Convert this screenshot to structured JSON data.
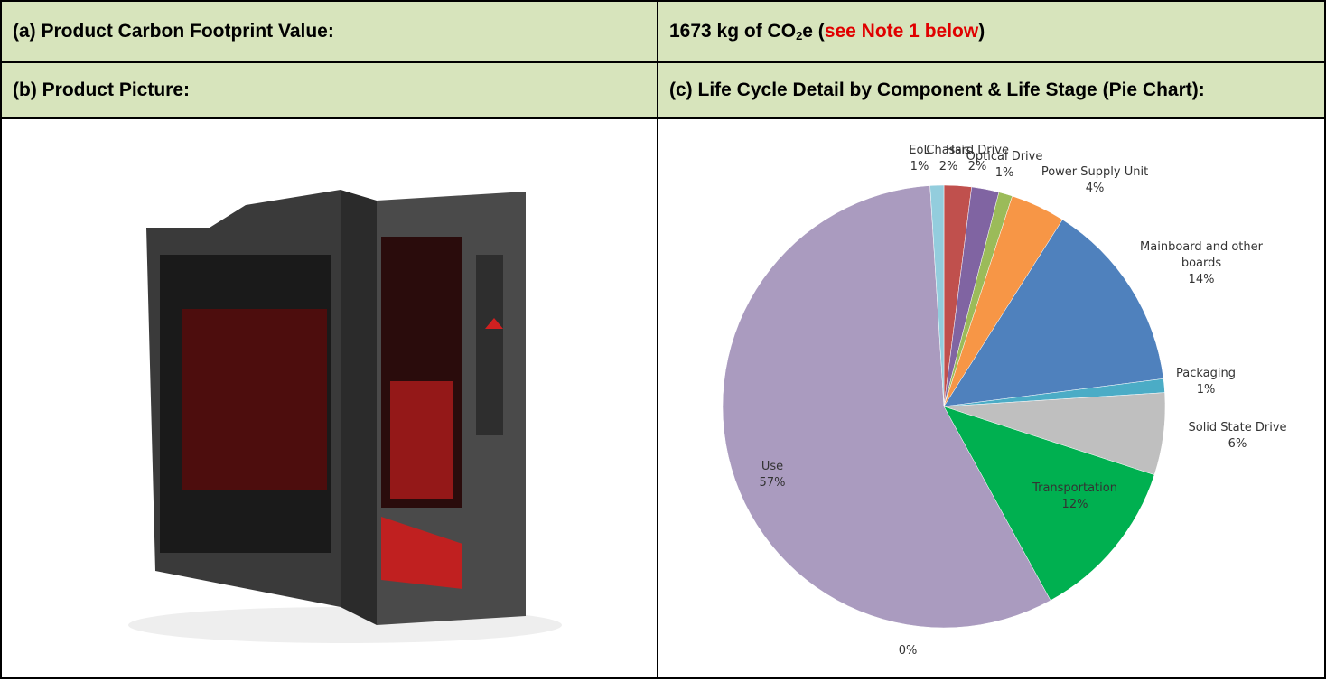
{
  "table": {
    "rows": [
      [
        "(a) Product Carbon Footprint Value:",
        [
          "1673 kg of CO",
          "2",
          "e (",
          "see Note 1 below",
          ")"
        ]
      ],
      [
        "(b) Product Picture:",
        "(c) Life Cycle Detail by Component & Life Stage (Pie Chart):"
      ]
    ]
  },
  "chart_data": {
    "type": "pie",
    "categories": [
      "Chassis",
      "Hard Drive",
      "Optical Drive",
      "Power Supply Unit",
      "Mainboard and other boards",
      "Packaging",
      "Solid State Drive",
      "Transportation",
      null,
      "Use",
      "EoL"
    ],
    "values": [
      2,
      2,
      1,
      4,
      14,
      1,
      6,
      12,
      0,
      57,
      1
    ],
    "value_labels": [
      "2%",
      "2%",
      "1%",
      "4%",
      "14%",
      "1%",
      "6%",
      "12%",
      "0%",
      "57%",
      "1%"
    ],
    "colors": [
      "#c0504d",
      "#8064a2",
      "#9bbb59",
      "#f79646",
      "#4f81bd",
      "#4bacc6",
      "#bfbfbf",
      "#00b050",
      "#7f7f7f",
      "#aa9bbf",
      "#93cddd"
    ]
  }
}
